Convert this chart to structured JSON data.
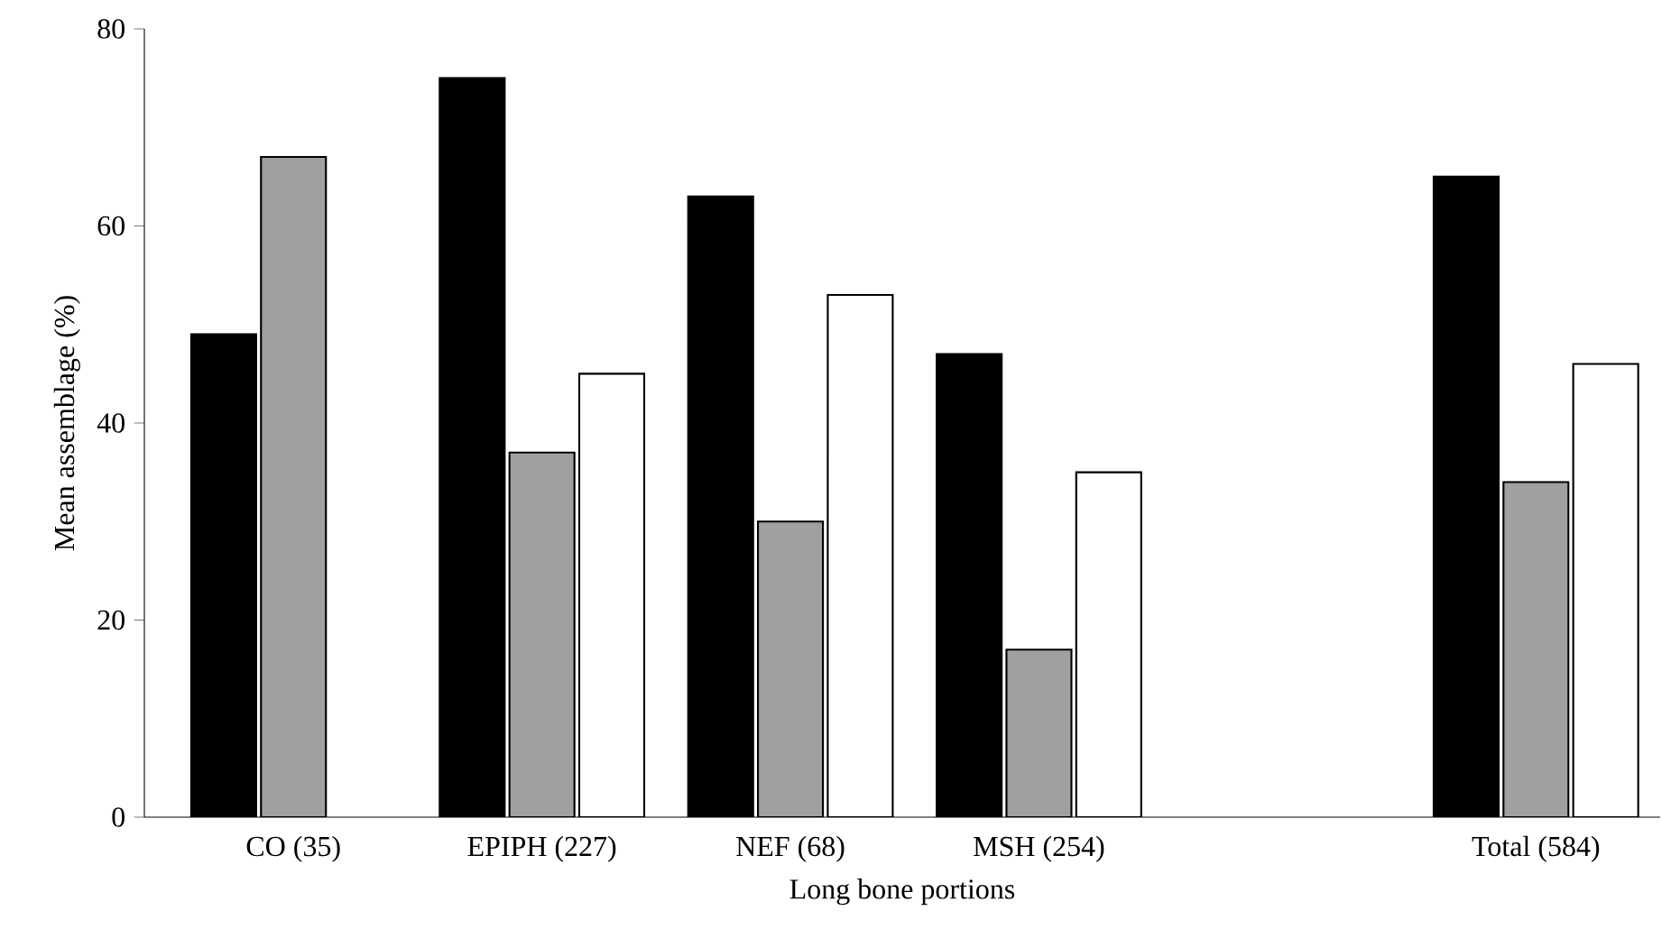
{
  "chart_data": {
    "type": "bar",
    "xlabel": "Long bone portions",
    "ylabel": "Mean assemblage (%)",
    "categories": [
      "CO (35)",
      "EPIPH (227)",
      "NEF (68)",
      "MSH (254)",
      null,
      "Total (584)"
    ],
    "series": [
      {
        "color": "#000000",
        "values": [
          49,
          75,
          63,
          47,
          null,
          65
        ]
      },
      {
        "color": "#a0a0a0",
        "values": [
          67,
          37,
          30,
          17,
          null,
          34
        ]
      },
      {
        "color": "#ffffff",
        "values": [
          null,
          45,
          53,
          35,
          null,
          46
        ]
      }
    ],
    "ylim": [
      0,
      80
    ],
    "yticks": [
      0,
      20,
      40,
      60,
      80
    ]
  }
}
